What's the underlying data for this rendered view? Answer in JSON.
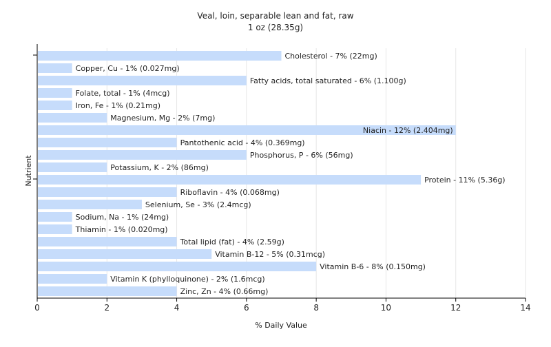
{
  "chart_data": {
    "type": "bar",
    "orientation": "horizontal",
    "title": "Veal, loin, separable lean and fat, raw",
    "subtitle": "1 oz (28.35g)",
    "xlabel": "% Daily Value",
    "ylabel": "Nutrient",
    "xlim": [
      0,
      14
    ],
    "x_ticks": [
      0,
      2,
      4,
      6,
      8,
      10,
      12,
      14
    ],
    "grid": "vertical",
    "bar_color": "#c6dcfb",
    "categories": [
      "Cholesterol",
      "Copper, Cu",
      "Fatty acids, total saturated",
      "Folate, total",
      "Iron, Fe",
      "Magnesium, Mg",
      "Niacin",
      "Pantothenic acid",
      "Phosphorus, P",
      "Potassium, K",
      "Protein",
      "Riboflavin",
      "Selenium, Se",
      "Sodium, Na",
      "Thiamin",
      "Total lipid (fat)",
      "Vitamin B-12",
      "Vitamin B-6",
      "Vitamin K (phylloquinone)",
      "Zinc, Zn"
    ],
    "values": [
      7,
      1,
      6,
      1,
      1,
      2,
      12,
      4,
      6,
      2,
      11,
      4,
      3,
      1,
      1,
      4,
      5,
      8,
      2,
      4
    ],
    "labels": [
      "Cholesterol - 7% (22mg)",
      "Copper, Cu - 1% (0.027mg)",
      "Fatty acids, total saturated - 6% (1.100g)",
      "Folate, total - 1% (4mcg)",
      "Iron, Fe - 1% (0.21mg)",
      "Magnesium, Mg - 2% (7mg)",
      "Niacin - 12% (2.404mg)",
      "Pantothenic acid - 4% (0.369mg)",
      "Phosphorus, P - 6% (56mg)",
      "Potassium, K - 2% (86mg)",
      "Protein - 11% (5.36g)",
      "Riboflavin - 4% (0.068mg)",
      "Selenium, Se - 3% (2.4mcg)",
      "Sodium, Na - 1% (24mg)",
      "Thiamin - 1% (0.020mg)",
      "Total lipid (fat) - 4% (2.59g)",
      "Vitamin B-12 - 5% (0.31mcg)",
      "Vitamin B-6 - 8% (0.150mg)",
      "Vitamin K (phylloquinone) - 2% (1.6mcg)",
      "Zinc, Zn - 4% (0.66mg)"
    ]
  }
}
